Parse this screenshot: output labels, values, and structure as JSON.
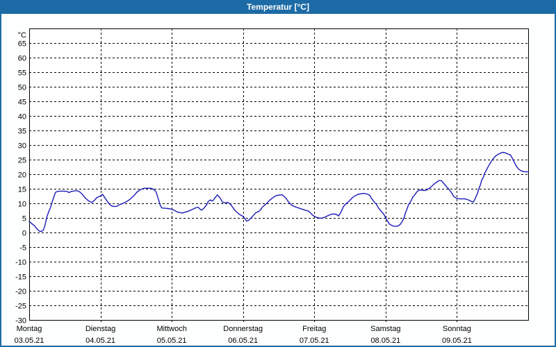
{
  "window": {
    "title": "Temperatur [°C]"
  },
  "colors": {
    "titlebar_bg": "#1d6ba6",
    "titlebar_text": "#ffffff",
    "frame_border": "#1d6ba6",
    "page_bg": "#fdfefe",
    "plot_bg": "#fefefe",
    "grid": "#000000",
    "axis": "#000000",
    "line": "#1a1ab8"
  },
  "chart_data": {
    "type": "line",
    "title": "Temperatur [°C]",
    "ylabel": "°C",
    "xlabel": "",
    "ylim": [
      -30,
      70
    ],
    "y_ticks": [
      65,
      60,
      55,
      50,
      45,
      40,
      35,
      30,
      25,
      20,
      15,
      10,
      5,
      0,
      -5,
      -10,
      -15,
      -20,
      -25,
      -30
    ],
    "grid": "dashed",
    "legend_position": "none",
    "x_days": [
      {
        "name": "Montag",
        "date": "03.05.21"
      },
      {
        "name": "Dienstag",
        "date": "04.05.21"
      },
      {
        "name": "Mittwoch",
        "date": "05.05.21"
      },
      {
        "name": "Donnerstag",
        "date": "06.05.21"
      },
      {
        "name": "Freitag",
        "date": "07.05.21"
      },
      {
        "name": "Samstag",
        "date": "08.05.21"
      },
      {
        "name": "Sonntag",
        "date": "09.05.21"
      }
    ],
    "series": [
      {
        "name": "Temperatur",
        "unit": "°C",
        "color": "#1a1ab8",
        "points": [
          [
            0.0,
            3.8
          ],
          [
            0.04,
            3.0
          ],
          [
            0.08,
            2.2
          ],
          [
            0.11,
            1.2
          ],
          [
            0.14,
            0.5
          ],
          [
            0.17,
            0.3
          ],
          [
            0.2,
            0.9
          ],
          [
            0.22,
            2.3
          ],
          [
            0.25,
            5.5
          ],
          [
            0.28,
            7.5
          ],
          [
            0.3,
            8.7
          ],
          [
            0.33,
            11.0
          ],
          [
            0.35,
            12.5
          ],
          [
            0.37,
            13.8
          ],
          [
            0.4,
            14.1
          ],
          [
            0.44,
            14.2
          ],
          [
            0.49,
            14.2
          ],
          [
            0.53,
            14.1
          ],
          [
            0.56,
            13.7
          ],
          [
            0.59,
            14.1
          ],
          [
            0.64,
            14.3
          ],
          [
            0.68,
            14.3
          ],
          [
            0.71,
            13.9
          ],
          [
            0.75,
            13.0
          ],
          [
            0.78,
            12.0
          ],
          [
            0.83,
            10.9
          ],
          [
            0.86,
            10.5
          ],
          [
            0.88,
            10.3
          ],
          [
            0.91,
            10.9
          ],
          [
            0.95,
            12.0
          ],
          [
            0.99,
            12.4
          ],
          [
            1.03,
            13.1
          ],
          [
            1.07,
            11.6
          ],
          [
            1.1,
            10.5
          ],
          [
            1.13,
            9.6
          ],
          [
            1.16,
            9.1
          ],
          [
            1.19,
            8.9
          ],
          [
            1.23,
            9.0
          ],
          [
            1.27,
            9.6
          ],
          [
            1.3,
            9.8
          ],
          [
            1.36,
            10.5
          ],
          [
            1.41,
            11.3
          ],
          [
            1.46,
            12.4
          ],
          [
            1.51,
            13.8
          ],
          [
            1.56,
            14.7
          ],
          [
            1.59,
            15.0
          ],
          [
            1.62,
            15.2
          ],
          [
            1.7,
            15.2
          ],
          [
            1.73,
            15.0
          ],
          [
            1.76,
            14.5
          ],
          [
            1.78,
            13.9
          ],
          [
            1.8,
            12.4
          ],
          [
            1.82,
            10.8
          ],
          [
            1.84,
            9.3
          ],
          [
            1.86,
            8.4
          ],
          [
            1.91,
            8.3
          ],
          [
            1.98,
            8.1
          ],
          [
            2.03,
            7.7
          ],
          [
            2.08,
            7.0
          ],
          [
            2.12,
            6.8
          ],
          [
            2.15,
            6.7
          ],
          [
            2.19,
            7.0
          ],
          [
            2.22,
            7.2
          ],
          [
            2.27,
            7.7
          ],
          [
            2.32,
            8.3
          ],
          [
            2.37,
            8.7
          ],
          [
            2.4,
            7.9
          ],
          [
            2.42,
            7.7
          ],
          [
            2.45,
            8.3
          ],
          [
            2.49,
            9.5
          ],
          [
            2.51,
            10.6
          ],
          [
            2.54,
            11.2
          ],
          [
            2.56,
            10.8
          ],
          [
            2.58,
            11.0
          ],
          [
            2.61,
            12.0
          ],
          [
            2.64,
            12.9
          ],
          [
            2.68,
            11.8
          ],
          [
            2.71,
            10.4
          ],
          [
            2.74,
            10.2
          ],
          [
            2.79,
            10.3
          ],
          [
            2.83,
            9.5
          ],
          [
            2.86,
            8.4
          ],
          [
            2.89,
            7.5
          ],
          [
            2.92,
            6.8
          ],
          [
            2.95,
            6.2
          ],
          [
            2.99,
            5.7
          ],
          [
            3.02,
            5.0
          ],
          [
            3.05,
            3.9
          ],
          [
            3.08,
            4.2
          ],
          [
            3.12,
            5.2
          ],
          [
            3.15,
            6.0
          ],
          [
            3.18,
            6.8
          ],
          [
            3.22,
            7.2
          ],
          [
            3.25,
            7.9
          ],
          [
            3.27,
            8.7
          ],
          [
            3.31,
            9.5
          ],
          [
            3.34,
            10.2
          ],
          [
            3.37,
            11.0
          ],
          [
            3.41,
            11.8
          ],
          [
            3.44,
            12.3
          ],
          [
            3.47,
            12.7
          ],
          [
            3.52,
            12.9
          ],
          [
            3.55,
            12.9
          ],
          [
            3.6,
            11.8
          ],
          [
            3.64,
            10.4
          ],
          [
            3.68,
            9.4
          ],
          [
            3.72,
            8.9
          ],
          [
            3.78,
            8.4
          ],
          [
            3.83,
            8.0
          ],
          [
            3.88,
            7.6
          ],
          [
            3.92,
            7.3
          ],
          [
            3.95,
            6.6
          ],
          [
            3.97,
            6.1
          ],
          [
            3.99,
            5.7
          ],
          [
            4.03,
            5.2
          ],
          [
            4.08,
            4.9
          ],
          [
            4.12,
            5.0
          ],
          [
            4.16,
            5.4
          ],
          [
            4.2,
            5.9
          ],
          [
            4.25,
            6.3
          ],
          [
            4.3,
            6.3
          ],
          [
            4.34,
            5.7
          ],
          [
            4.37,
            6.8
          ],
          [
            4.39,
            7.9
          ],
          [
            4.41,
            8.9
          ],
          [
            4.43,
            9.5
          ],
          [
            4.45,
            10.0
          ],
          [
            4.48,
            10.6
          ],
          [
            4.51,
            11.3
          ],
          [
            4.54,
            12.1
          ],
          [
            4.58,
            12.7
          ],
          [
            4.61,
            13.1
          ],
          [
            4.66,
            13.3
          ],
          [
            4.68,
            13.4
          ],
          [
            4.72,
            13.3
          ],
          [
            4.75,
            13.1
          ],
          [
            4.78,
            12.7
          ],
          [
            4.8,
            11.8
          ],
          [
            4.83,
            10.8
          ],
          [
            4.85,
            10.2
          ],
          [
            4.87,
            9.7
          ],
          [
            4.9,
            8.4
          ],
          [
            4.93,
            7.5
          ],
          [
            4.95,
            6.9
          ],
          [
            4.97,
            6.4
          ],
          [
            4.99,
            5.6
          ],
          [
            5.01,
            4.6
          ],
          [
            5.03,
            3.8
          ],
          [
            5.05,
            3.0
          ],
          [
            5.08,
            2.5
          ],
          [
            5.11,
            2.2
          ],
          [
            5.15,
            2.1
          ],
          [
            5.18,
            2.3
          ],
          [
            5.21,
            2.9
          ],
          [
            5.24,
            4.1
          ],
          [
            5.26,
            5.2
          ],
          [
            5.28,
            6.9
          ],
          [
            5.3,
            8.0
          ],
          [
            5.32,
            9.5
          ],
          [
            5.34,
            10.2
          ],
          [
            5.36,
            11.0
          ],
          [
            5.38,
            12.1
          ],
          [
            5.41,
            13.0
          ],
          [
            5.44,
            14.0
          ],
          [
            5.47,
            14.6
          ],
          [
            5.51,
            14.5
          ],
          [
            5.54,
            14.4
          ],
          [
            5.57,
            14.5
          ],
          [
            5.59,
            14.8
          ],
          [
            5.63,
            15.5
          ],
          [
            5.66,
            16.2
          ],
          [
            5.7,
            17.0
          ],
          [
            5.73,
            17.5
          ],
          [
            5.75,
            17.8
          ],
          [
            5.78,
            17.8
          ],
          [
            5.81,
            17.0
          ],
          [
            5.84,
            16.2
          ],
          [
            5.86,
            15.5
          ],
          [
            5.88,
            15.1
          ],
          [
            5.9,
            14.4
          ],
          [
            5.93,
            13.5
          ],
          [
            5.95,
            12.5
          ],
          [
            5.97,
            12.1
          ],
          [
            5.99,
            11.8
          ],
          [
            6.02,
            11.6
          ],
          [
            6.06,
            11.5
          ],
          [
            6.1,
            11.6
          ],
          [
            6.13,
            11.4
          ],
          [
            6.16,
            11.2
          ],
          [
            6.19,
            10.8
          ],
          [
            6.23,
            10.4
          ],
          [
            6.25,
            11.3
          ],
          [
            6.27,
            12.4
          ],
          [
            6.29,
            13.5
          ],
          [
            6.31,
            15.2
          ],
          [
            6.33,
            16.4
          ],
          [
            6.35,
            18.1
          ],
          [
            6.37,
            18.9
          ],
          [
            6.39,
            20.4
          ],
          [
            6.41,
            21.2
          ],
          [
            6.44,
            22.7
          ],
          [
            6.46,
            23.5
          ],
          [
            6.49,
            24.7
          ],
          [
            6.51,
            25.3
          ],
          [
            6.54,
            26.2
          ],
          [
            6.57,
            26.7
          ],
          [
            6.61,
            27.2
          ],
          [
            6.64,
            27.5
          ],
          [
            6.67,
            27.4
          ],
          [
            6.7,
            27.1
          ],
          [
            6.72,
            26.9
          ],
          [
            6.75,
            26.6
          ],
          [
            6.77,
            25.8
          ],
          [
            6.8,
            24.3
          ],
          [
            6.83,
            22.9
          ],
          [
            6.86,
            21.9
          ],
          [
            6.89,
            21.3
          ],
          [
            6.92,
            21.0
          ],
          [
            6.95,
            20.8
          ],
          [
            7.0,
            20.8
          ]
        ]
      }
    ]
  }
}
